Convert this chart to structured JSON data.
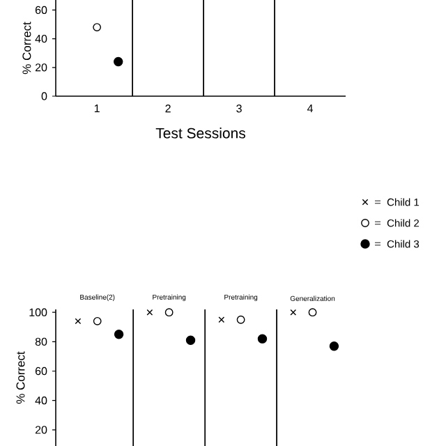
{
  "chart_data": [
    {
      "type": "scatter",
      "xlabel": "Test Sessions",
      "ylabel": "% Correct",
      "categories": [
        "1",
        "2",
        "3",
        "4"
      ],
      "ylim": [
        0,
        67
      ],
      "yticks": [
        0,
        20,
        40,
        60
      ],
      "legend": "right",
      "grid": false,
      "series": [
        {
          "name": "Child 1",
          "color": "#000000",
          "values": [
            null,
            null,
            null,
            null
          ]
        },
        {
          "name": "Child 2",
          "color": "#000000",
          "values": [
            48,
            null,
            null,
            null
          ]
        },
        {
          "name": "Child 3",
          "color": "#000000",
          "values": [
            24,
            null,
            null,
            null
          ]
        }
      ]
    },
    {
      "type": "scatter",
      "ylabel": "% Correct",
      "categories": [
        "Baseline(2)",
        "Pretraining",
        "Pretraining",
        "Generalization"
      ],
      "ylim": [
        9,
        102
      ],
      "yticks": [
        20,
        40,
        60,
        80,
        100
      ],
      "grid": false,
      "series": [
        {
          "color": "#000000",
          "values": [
            94,
            100,
            95,
            100
          ]
        },
        {
          "color": "#000000",
          "values": [
            94,
            100,
            95,
            100
          ]
        },
        {
          "color": "#000000",
          "values": [
            85,
            81,
            82,
            77
          ]
        }
      ]
    }
  ]
}
